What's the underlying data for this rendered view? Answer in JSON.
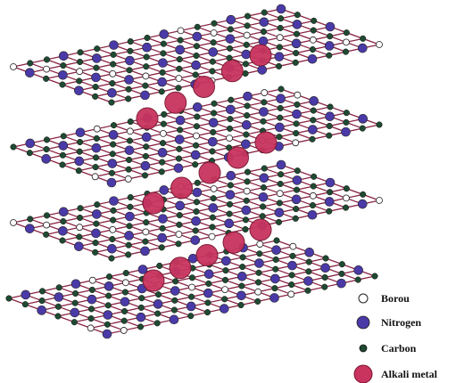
{
  "legend": {
    "items": [
      {
        "label": "Borou"
      },
      {
        "label": "Nitrogen"
      },
      {
        "label": "Carbon"
      },
      {
        "label": "Alkali metal"
      }
    ]
  }
}
